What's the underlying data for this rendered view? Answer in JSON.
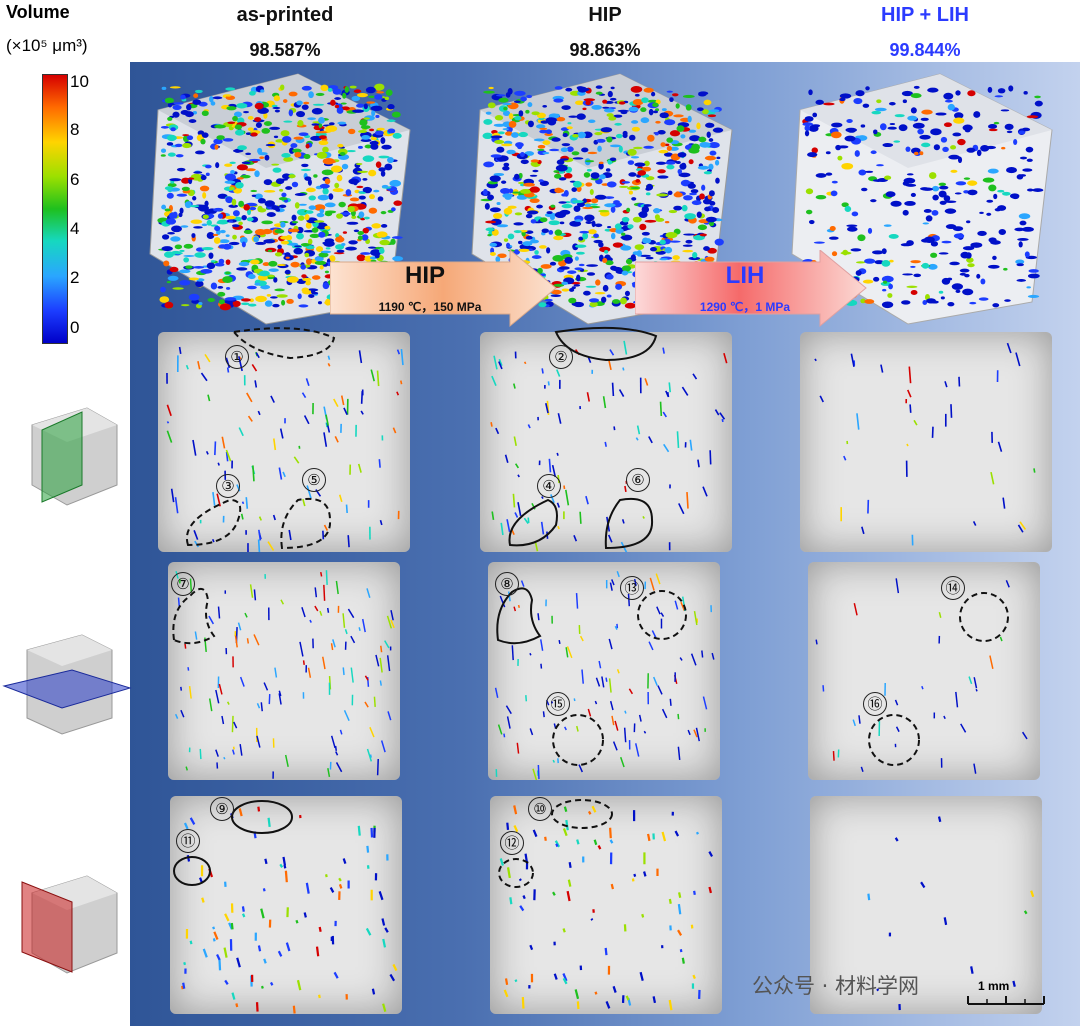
{
  "colorbar": {
    "title": "Volume",
    "unit": "(×10⁵ μm³)",
    "ticks": [
      "10",
      "8",
      "6",
      "4",
      "2",
      "0"
    ]
  },
  "columns": [
    {
      "title": "as-printed",
      "density": "98.587%",
      "color": "#111111"
    },
    {
      "title": "HIP",
      "density": "98.863%",
      "color": "#111111"
    },
    {
      "title": "HIP + LIH",
      "density": "99.844%",
      "color": "#2b3bff"
    }
  ],
  "arrows": [
    {
      "label": "HIP",
      "params": "1190 ℃，150 MPa",
      "param_color": "#111111"
    },
    {
      "label": "LIH",
      "params": "1290 ℃，1 MPa",
      "param_color": "#2b3bff"
    }
  ],
  "region_labels": [
    "①",
    "②",
    "③",
    "④",
    "⑤",
    "⑥",
    "⑦",
    "⑧",
    "⑨",
    "⑩",
    "⑪",
    "⑫",
    "⑬",
    "⑭",
    "⑮",
    "⑯"
  ],
  "watermark": "公众号 · 材料学网",
  "scale_bar": "1 mm",
  "colors": {
    "panel_left": "#2f5597",
    "panel_right": "#c3d2ee",
    "lih_blue": "#2b3bff"
  }
}
